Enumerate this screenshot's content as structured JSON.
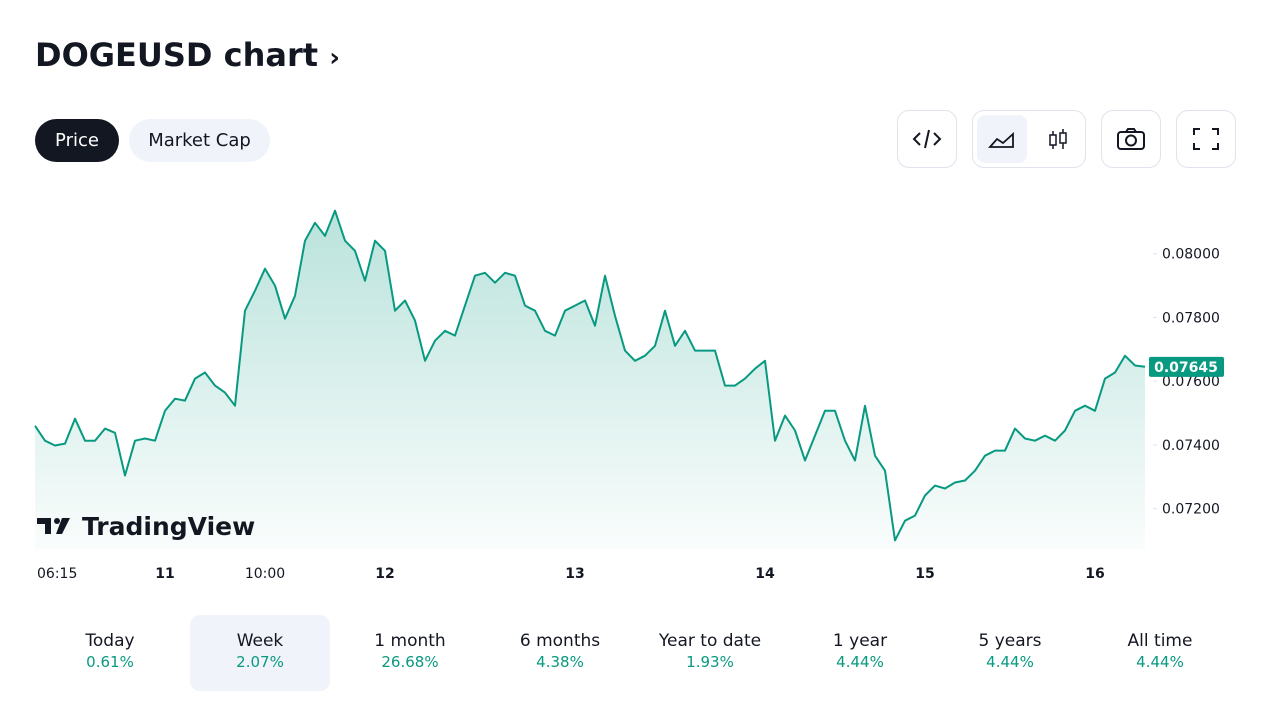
{
  "header": {
    "title": "DOGEUSD chart"
  },
  "tabs": [
    "Price",
    "Market Cap"
  ],
  "logo": "TradingView",
  "chart_data": {
    "type": "line",
    "color": "#089981",
    "categories": [
      "06:15",
      null,
      null,
      null,
      null,
      null,
      null,
      null,
      null,
      null,
      null,
      null,
      null,
      "11",
      null,
      null,
      null,
      null,
      null,
      null,
      null,
      null,
      null,
      "10:00",
      null,
      null,
      null,
      null,
      null,
      null,
      null,
      null,
      null,
      null,
      null,
      "12",
      null,
      null,
      null,
      null,
      null,
      null,
      null,
      null,
      null,
      null,
      null,
      null,
      null,
      null,
      null,
      null,
      null,
      null,
      "13",
      null,
      null,
      null,
      null,
      null,
      null,
      null,
      null,
      null,
      null,
      null,
      null,
      null,
      null,
      null,
      null,
      null,
      null,
      "14",
      null,
      null,
      null,
      null,
      null,
      null,
      null,
      null,
      null,
      null,
      null,
      null,
      null,
      null,
      null,
      "15",
      null,
      null,
      null,
      null,
      null,
      null,
      null,
      null,
      null,
      null,
      null,
      null,
      null,
      null,
      null,
      null,
      "16",
      null,
      null,
      null,
      null,
      null
    ],
    "values": [
      0.0746,
      0.07413,
      0.07398,
      0.07404,
      0.07482,
      0.07413,
      0.07413,
      0.07451,
      0.07438,
      0.07304,
      0.07413,
      0.0742,
      0.07413,
      0.07507,
      0.07545,
      0.07539,
      0.07608,
      0.07627,
      0.07586,
      0.07564,
      0.07523,
      0.07821,
      0.07884,
      0.07953,
      0.079,
      0.07796,
      0.07868,
      0.08041,
      0.08097,
      0.08056,
      0.08135,
      0.08041,
      0.08009,
      0.07915,
      0.08041,
      0.08009,
      0.07821,
      0.07853,
      0.0779,
      0.07664,
      0.07727,
      0.07758,
      0.07743,
      0.07837,
      0.07931,
      0.0794,
      0.07909,
      0.0794,
      0.07931,
      0.07837,
      0.07821,
      0.07758,
      0.07743,
      0.07821,
      0.07837,
      0.07853,
      0.07774,
      0.07931,
      0.07805,
      0.07696,
      0.07664,
      0.0768,
      0.07711,
      0.07821,
      0.07711,
      0.07758,
      0.07696,
      0.07696,
      0.07696,
      0.07586,
      0.07586,
      0.07608,
      0.07639,
      0.07664,
      0.07413,
      0.07492,
      0.07445,
      0.07351,
      0.07429,
      0.07507,
      0.07507,
      0.07413,
      0.07351,
      0.07523,
      0.07366,
      0.07319,
      0.071,
      0.07162,
      0.07178,
      0.07241,
      0.07272,
      0.07263,
      0.07282,
      0.07288,
      0.07319,
      0.07366,
      0.07382,
      0.07382,
      0.07451,
      0.0742,
      0.07413,
      0.07429,
      0.07413,
      0.07445,
      0.07507,
      0.07523,
      0.07507,
      0.07608,
      0.07627,
      0.0768,
      0.07649,
      0.07645
    ],
    "ylim": [
      0.0707,
      0.082
    ],
    "yticks": [
      {
        "value": 0.072,
        "label": "0.07200"
      },
      {
        "value": 0.074,
        "label": "0.07400"
      },
      {
        "value": 0.076,
        "label": "0.07600"
      },
      {
        "value": 0.078,
        "label": "0.07800"
      },
      {
        "value": 0.08,
        "label": "0.08000"
      }
    ]
  },
  "periods": [
    {
      "label": "Today",
      "change": "0.61%"
    },
    {
      "label": "Week",
      "change": "2.07%"
    },
    {
      "label": "1 month",
      "change": "26.68%"
    },
    {
      "label": "6 months",
      "change": "4.38%"
    },
    {
      "label": "Year to date",
      "change": "1.93%"
    },
    {
      "label": "1 year",
      "change": "4.44%"
    },
    {
      "label": "5 years",
      "change": "4.44%"
    },
    {
      "label": "All time",
      "change": "4.44%"
    }
  ]
}
